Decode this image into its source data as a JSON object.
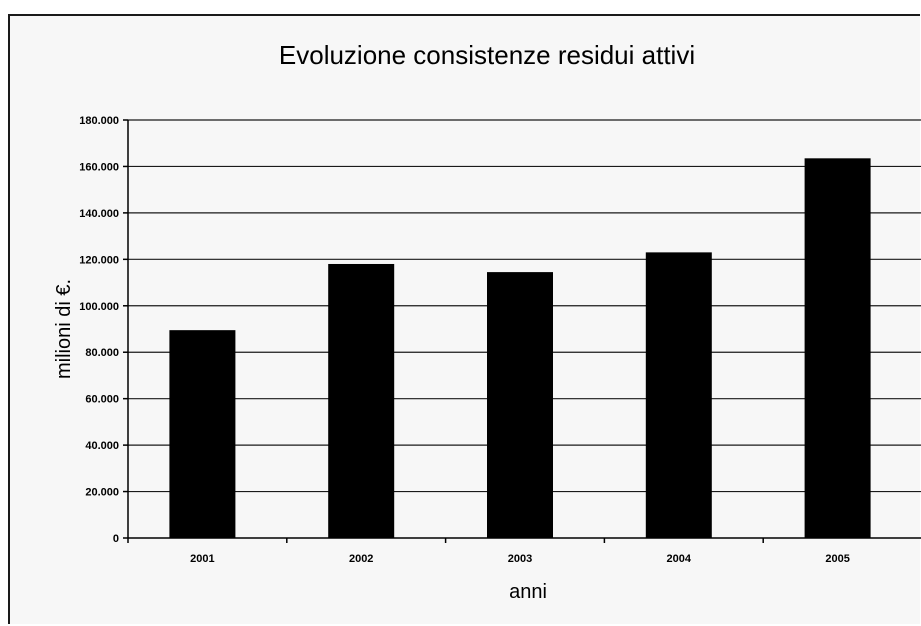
{
  "chart_data": {
    "type": "bar",
    "title": "Evoluzione consistenze residui attivi",
    "xlabel": "anni",
    "ylabel": "milioni di €.",
    "categories": [
      "2001",
      "2002",
      "2003",
      "2004",
      "2005"
    ],
    "values": [
      89500,
      118000,
      114500,
      123000,
      163500
    ],
    "ylim": [
      0,
      180000
    ],
    "yticks": [
      "0",
      "20.000",
      "40.000",
      "60.000",
      "80.000",
      "100.000",
      "120.000",
      "140.000",
      "160.000",
      "180.000"
    ],
    "grid": true,
    "legend": "none",
    "bar_color": "#000000"
  }
}
